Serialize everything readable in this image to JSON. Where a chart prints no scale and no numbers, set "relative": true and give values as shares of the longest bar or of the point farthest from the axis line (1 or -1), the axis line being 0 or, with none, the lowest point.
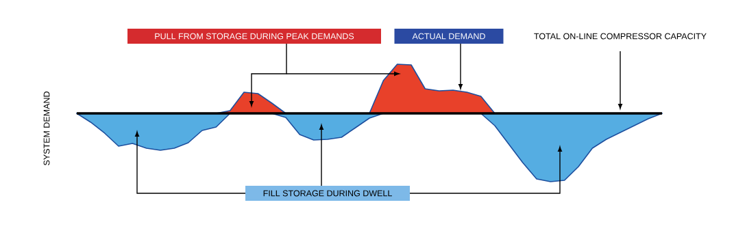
{
  "chart_data": {
    "type": "area",
    "relative": true,
    "ylabel": "SYSTEM DEMAND",
    "categories": [
      null,
      null,
      null,
      null,
      null,
      null,
      null,
      null,
      null,
      null,
      null,
      null,
      null,
      null,
      null,
      null,
      null,
      null,
      null,
      null,
      null,
      null,
      null,
      null,
      null,
      null,
      null,
      null,
      null,
      null,
      null,
      null,
      null,
      null,
      null,
      null,
      null,
      null,
      null,
      null,
      null,
      null,
      null
    ],
    "series": [
      {
        "color": "#e8412a",
        "values": [
          0,
          0,
          0,
          0,
          0,
          0,
          0,
          0,
          0,
          0,
          0,
          0.04,
          0.31,
          0.29,
          0.15,
          0,
          0,
          0,
          0,
          0,
          0,
          0,
          0.48,
          0.72,
          0.71,
          0.36,
          0.33,
          0.34,
          0.31,
          0.25,
          0,
          0,
          0,
          0,
          0,
          0,
          0,
          0,
          0,
          0,
          0,
          0,
          0
        ]
      },
      {
        "color": "#55ade2",
        "values": [
          0,
          -0.13,
          -0.29,
          -0.48,
          -0.44,
          -0.51,
          -0.54,
          -0.51,
          -0.43,
          -0.25,
          -0.2,
          0,
          0,
          0,
          0,
          -0.06,
          -0.31,
          -0.39,
          -0.38,
          -0.35,
          -0.21,
          -0.07,
          0,
          0,
          0,
          0,
          0,
          0,
          0,
          0,
          -0.18,
          -0.45,
          -0.72,
          -0.96,
          -1,
          -0.98,
          -0.78,
          -0.51,
          -0.38,
          -0.28,
          -0.18,
          -0.08,
          0
        ]
      }
    ],
    "annotations": [
      "PULL FROM STORAGE DURING PEAK DEMANDS",
      "ACTUAL DEMAND",
      "FILL STORAGE DURING DWELL",
      "TOTAL ON-LINE COMPRESSOR CAPACITY"
    ]
  }
}
